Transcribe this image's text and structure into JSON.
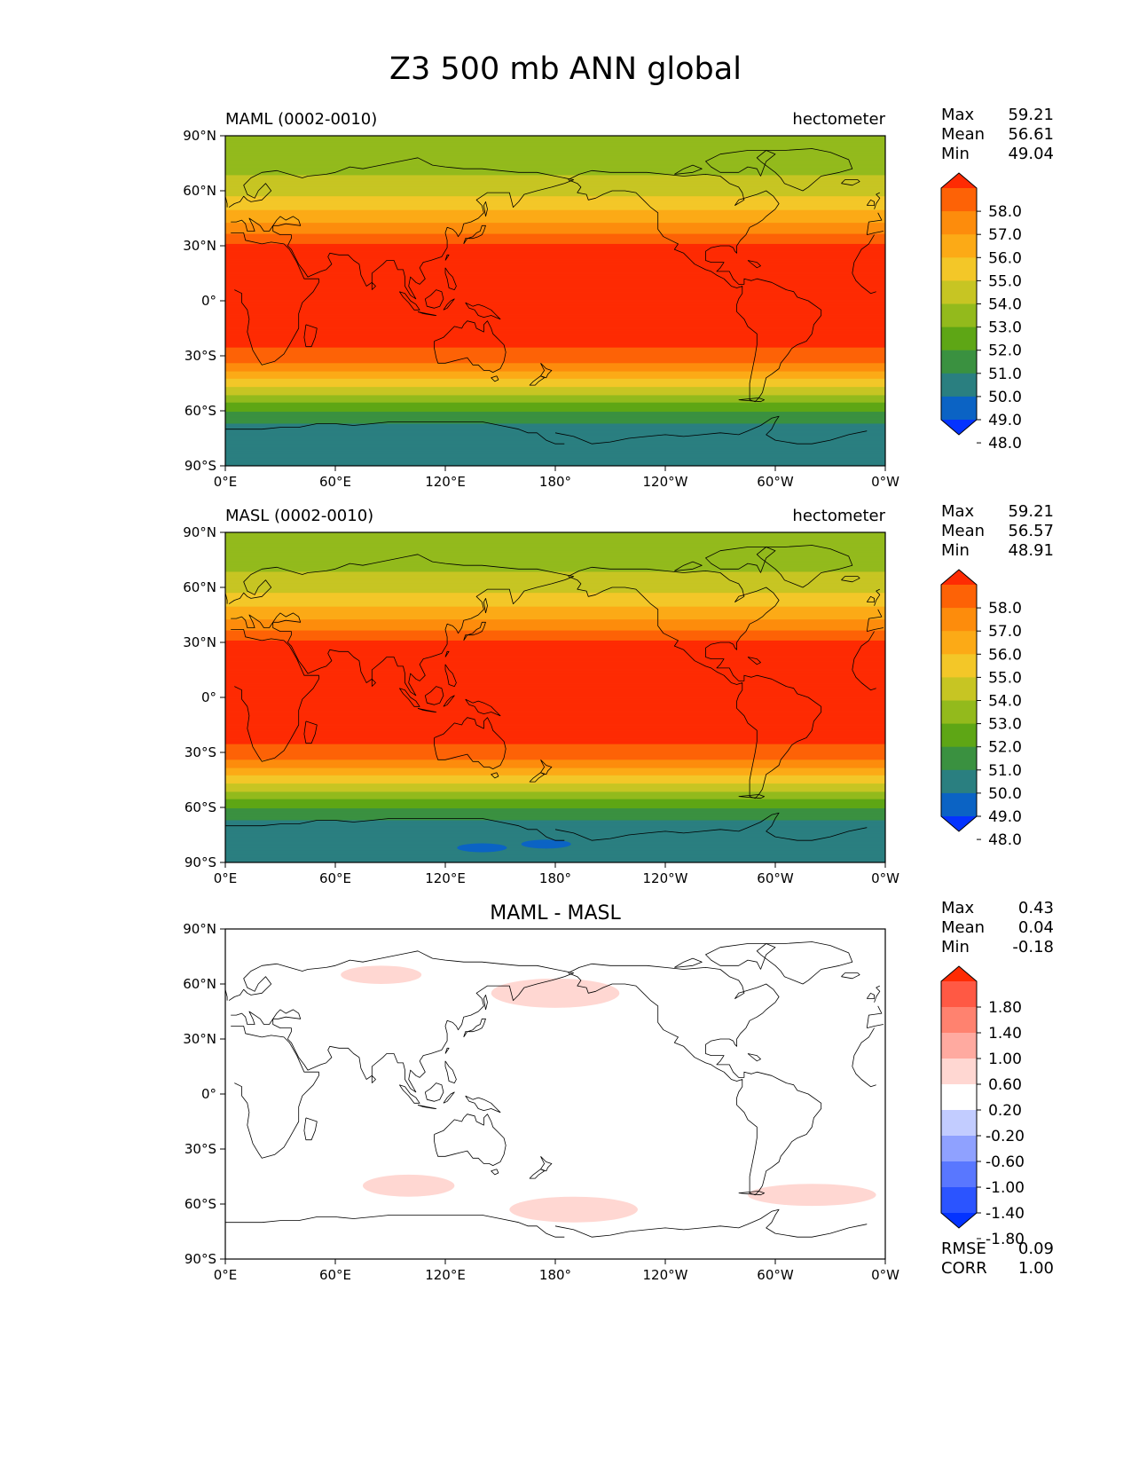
{
  "title": "Z3 500 mb ANN global",
  "colors": {
    "levels": [
      "#0433ff",
      "#0b63c4",
      "#2a7f80",
      "#3a9140",
      "#5ea615",
      "#93ba1c",
      "#c7c523",
      "#f3c728",
      "#fcaa16",
      "#fd8c0c",
      "#fd6206",
      "#fe2b03"
    ],
    "diff": [
      "#0433ff",
      "#2b54ff",
      "#5977ff",
      "#8fa1ff",
      "#c2ccff",
      "#ffffff",
      "#ffd7d2",
      "#ffaaa0",
      "#ff826f",
      "#ff5944",
      "#fe2b03"
    ],
    "coast": "#000000"
  },
  "axes": {
    "yticks": [
      "90°N",
      "60°N",
      "30°N",
      "0°",
      "30°S",
      "60°S",
      "90°S"
    ],
    "xticks": [
      "0°E",
      "60°E",
      "120°E",
      "180°",
      "120°W",
      "60°W",
      "0°W"
    ]
  },
  "chart_data": [
    {
      "type": "heatmap",
      "title": "MAML (0002-0010)",
      "units": "hectometer",
      "stats": {
        "max_label": "Max",
        "max": "59.21",
        "mean_label": "Mean",
        "mean": "56.61",
        "min_label": "Min",
        "min": "49.04"
      },
      "colorbar_labels": [
        "58.0",
        "57.0",
        "56.0",
        "55.0",
        "54.0",
        "53.0",
        "52.0",
        "51.0",
        "50.0",
        "49.0",
        "48.0"
      ],
      "zonal_profile": {
        "lat": [
          -90,
          -70,
          -65,
          -60,
          -55,
          -50,
          -45,
          -40,
          -35,
          -30,
          0,
          30,
          35,
          40,
          45,
          50,
          55,
          60,
          65,
          70,
          75,
          80,
          85,
          90
        ],
        "value": [
          49.2,
          49.5,
          50.3,
          51.1,
          52.1,
          53.3,
          54.5,
          55.6,
          56.8,
          57.9,
          58.6,
          58.2,
          57.3,
          56.4,
          55.6,
          54.9,
          54.2,
          53.7,
          53.2,
          52.9,
          52.6,
          52.4,
          52.2,
          52.1
        ]
      }
    },
    {
      "type": "heatmap",
      "title": "MASL (0002-0010)",
      "units": "hectometer",
      "stats": {
        "max_label": "Max",
        "max": "59.21",
        "mean_label": "Mean",
        "mean": "56.57",
        "min_label": "Min",
        "min": "48.91"
      },
      "colorbar_labels": [
        "58.0",
        "57.0",
        "56.0",
        "55.0",
        "54.0",
        "53.0",
        "52.0",
        "51.0",
        "50.0",
        "49.0",
        "48.0"
      ],
      "zonal_profile": {
        "lat": [
          -90,
          -70,
          -65,
          -60,
          -55,
          -50,
          -45,
          -40,
          -35,
          -30,
          0,
          30,
          35,
          40,
          45,
          50,
          55,
          60,
          65,
          70,
          75,
          80,
          85,
          90
        ],
        "value": [
          49.2,
          49.5,
          50.3,
          51.1,
          52.1,
          53.3,
          54.5,
          55.6,
          56.8,
          57.9,
          58.6,
          58.2,
          57.3,
          56.4,
          55.6,
          54.9,
          54.2,
          53.7,
          53.2,
          52.9,
          52.6,
          52.4,
          52.2,
          52.1
        ]
      },
      "low_patches": [
        {
          "lon": 140,
          "lat": -82,
          "value": 48.9
        },
        {
          "lon": 175,
          "lat": -80,
          "value": 48.95
        }
      ]
    },
    {
      "type": "heatmap",
      "title": "MAML - MASL",
      "units": "",
      "stats": {
        "max_label": "Max",
        "max": "0.43",
        "mean_label": "Mean",
        "mean": "0.04",
        "min_label": "Min",
        "min": "-0.18"
      },
      "colorbar_labels": [
        "1.80",
        "1.40",
        "1.00",
        "0.60",
        "0.20",
        "-0.20",
        "-0.60",
        "-1.00",
        "-1.40",
        "-1.80"
      ],
      "extra_stats": {
        "rmse_label": "RMSE",
        "rmse": "0.09",
        "corr_label": "CORR",
        "corr": "1.00"
      },
      "positive_anomalies": [
        {
          "lon": 85,
          "lat": 65,
          "dlon": 22,
          "dlat": 5,
          "value": 0.3
        },
        {
          "lon": 180,
          "lat": 55,
          "dlon": 35,
          "dlat": 8,
          "value": 0.3
        },
        {
          "lon": 100,
          "lat": -50,
          "dlon": 25,
          "dlat": 6,
          "value": 0.3
        },
        {
          "lon": 190,
          "lat": -63,
          "dlon": 35,
          "dlat": 7,
          "value": 0.3
        },
        {
          "lon": 320,
          "lat": -55,
          "dlon": 35,
          "dlat": 6,
          "value": 0.3
        }
      ]
    }
  ]
}
